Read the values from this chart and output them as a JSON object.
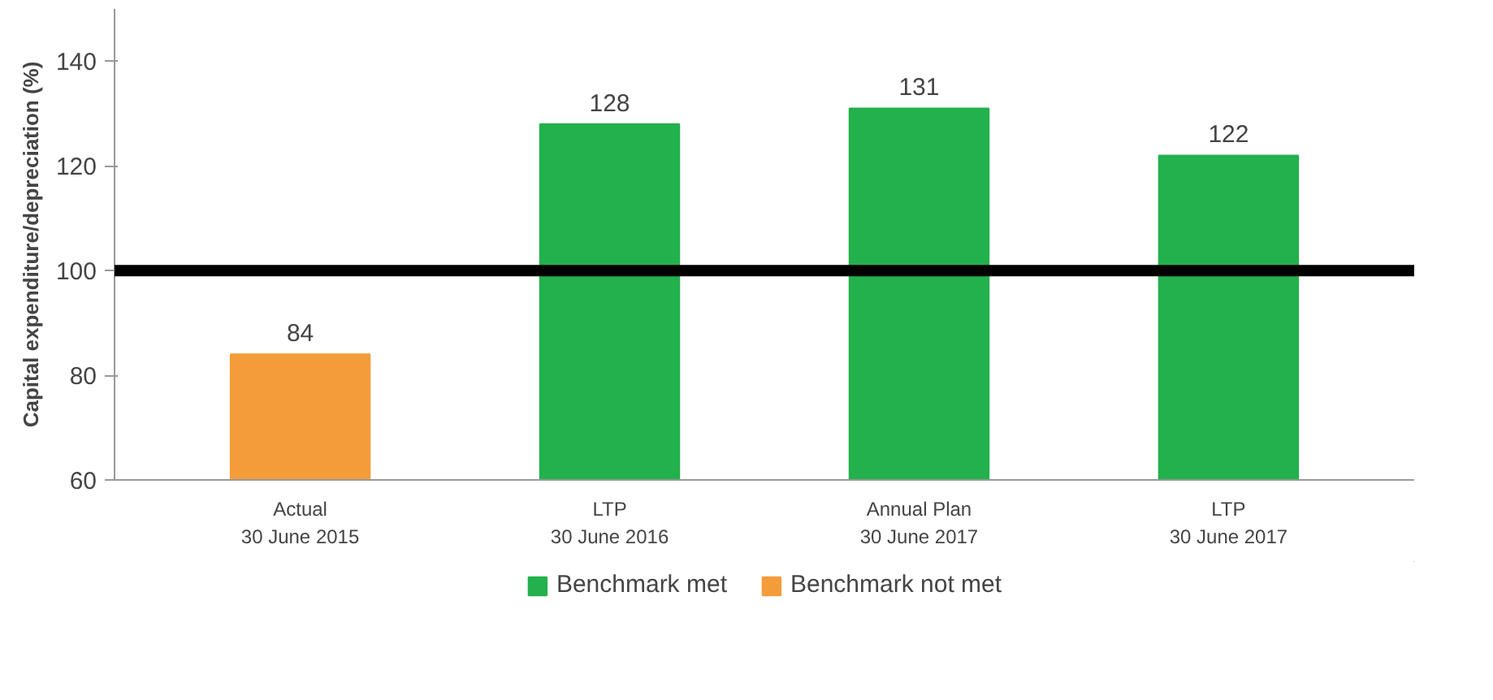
{
  "chart_data": {
    "type": "bar",
    "ylabel": "Capital expenditure/depreciation (%)",
    "categories": [
      "Actual\n30 June 2015",
      "LTP\n30 June 2016",
      "Annual Plan\n30 June 2017",
      "LTP\n30 June 2017"
    ],
    "series": [
      {
        "name": "Benchmark met",
        "color": "#22b14c",
        "values": [
          null,
          128,
          131,
          122
        ]
      },
      {
        "name": "Benchmark not met",
        "color": "#f59c3a",
        "values": [
          84,
          null,
          null,
          null
        ]
      }
    ],
    "ylim": [
      60,
      150
    ],
    "yticks": [
      60,
      80,
      100,
      120,
      140
    ],
    "ref_lines": [
      {
        "axis": "y",
        "value": 100,
        "color": "#000000"
      }
    ],
    "data_labels": true,
    "grid": false,
    "legend": "bottom"
  }
}
